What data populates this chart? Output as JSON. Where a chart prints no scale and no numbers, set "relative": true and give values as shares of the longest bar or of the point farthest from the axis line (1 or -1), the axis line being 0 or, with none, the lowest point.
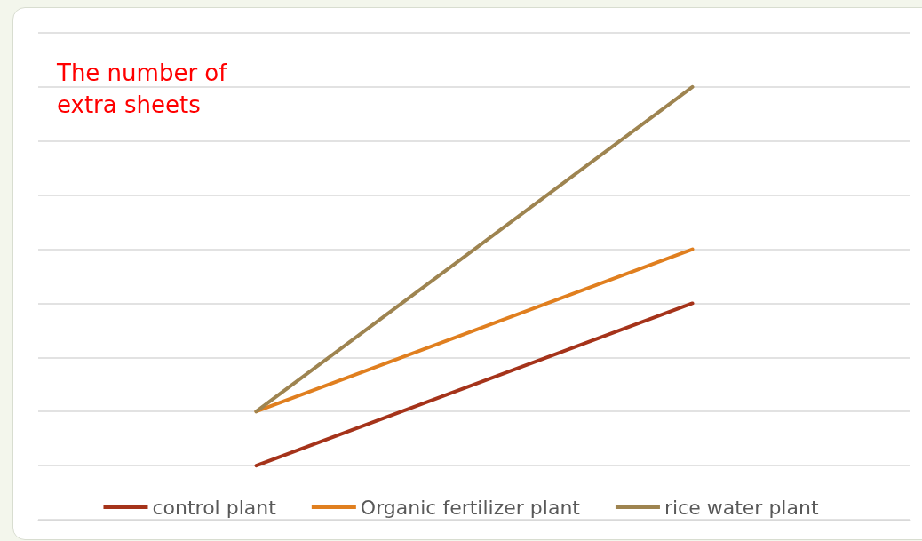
{
  "chart_data": {
    "type": "line",
    "ylabel": "The number of extra sheets",
    "categories": [
      null,
      null
    ],
    "relative": true,
    "grid": "y",
    "legend": "bottom",
    "marker": "none",
    "line_style": "solid",
    "series": [
      {
        "name": "control plant",
        "color": "#a5331a",
        "values": [
          0.125,
          0.5
        ]
      },
      {
        "name": "Organic fertilizer plant",
        "color": "#e07f1f",
        "values": [
          0.25,
          0.625
        ]
      },
      {
        "name": "rice water plant",
        "color": "#9e8450",
        "values": [
          0.25,
          1
        ]
      }
    ]
  }
}
